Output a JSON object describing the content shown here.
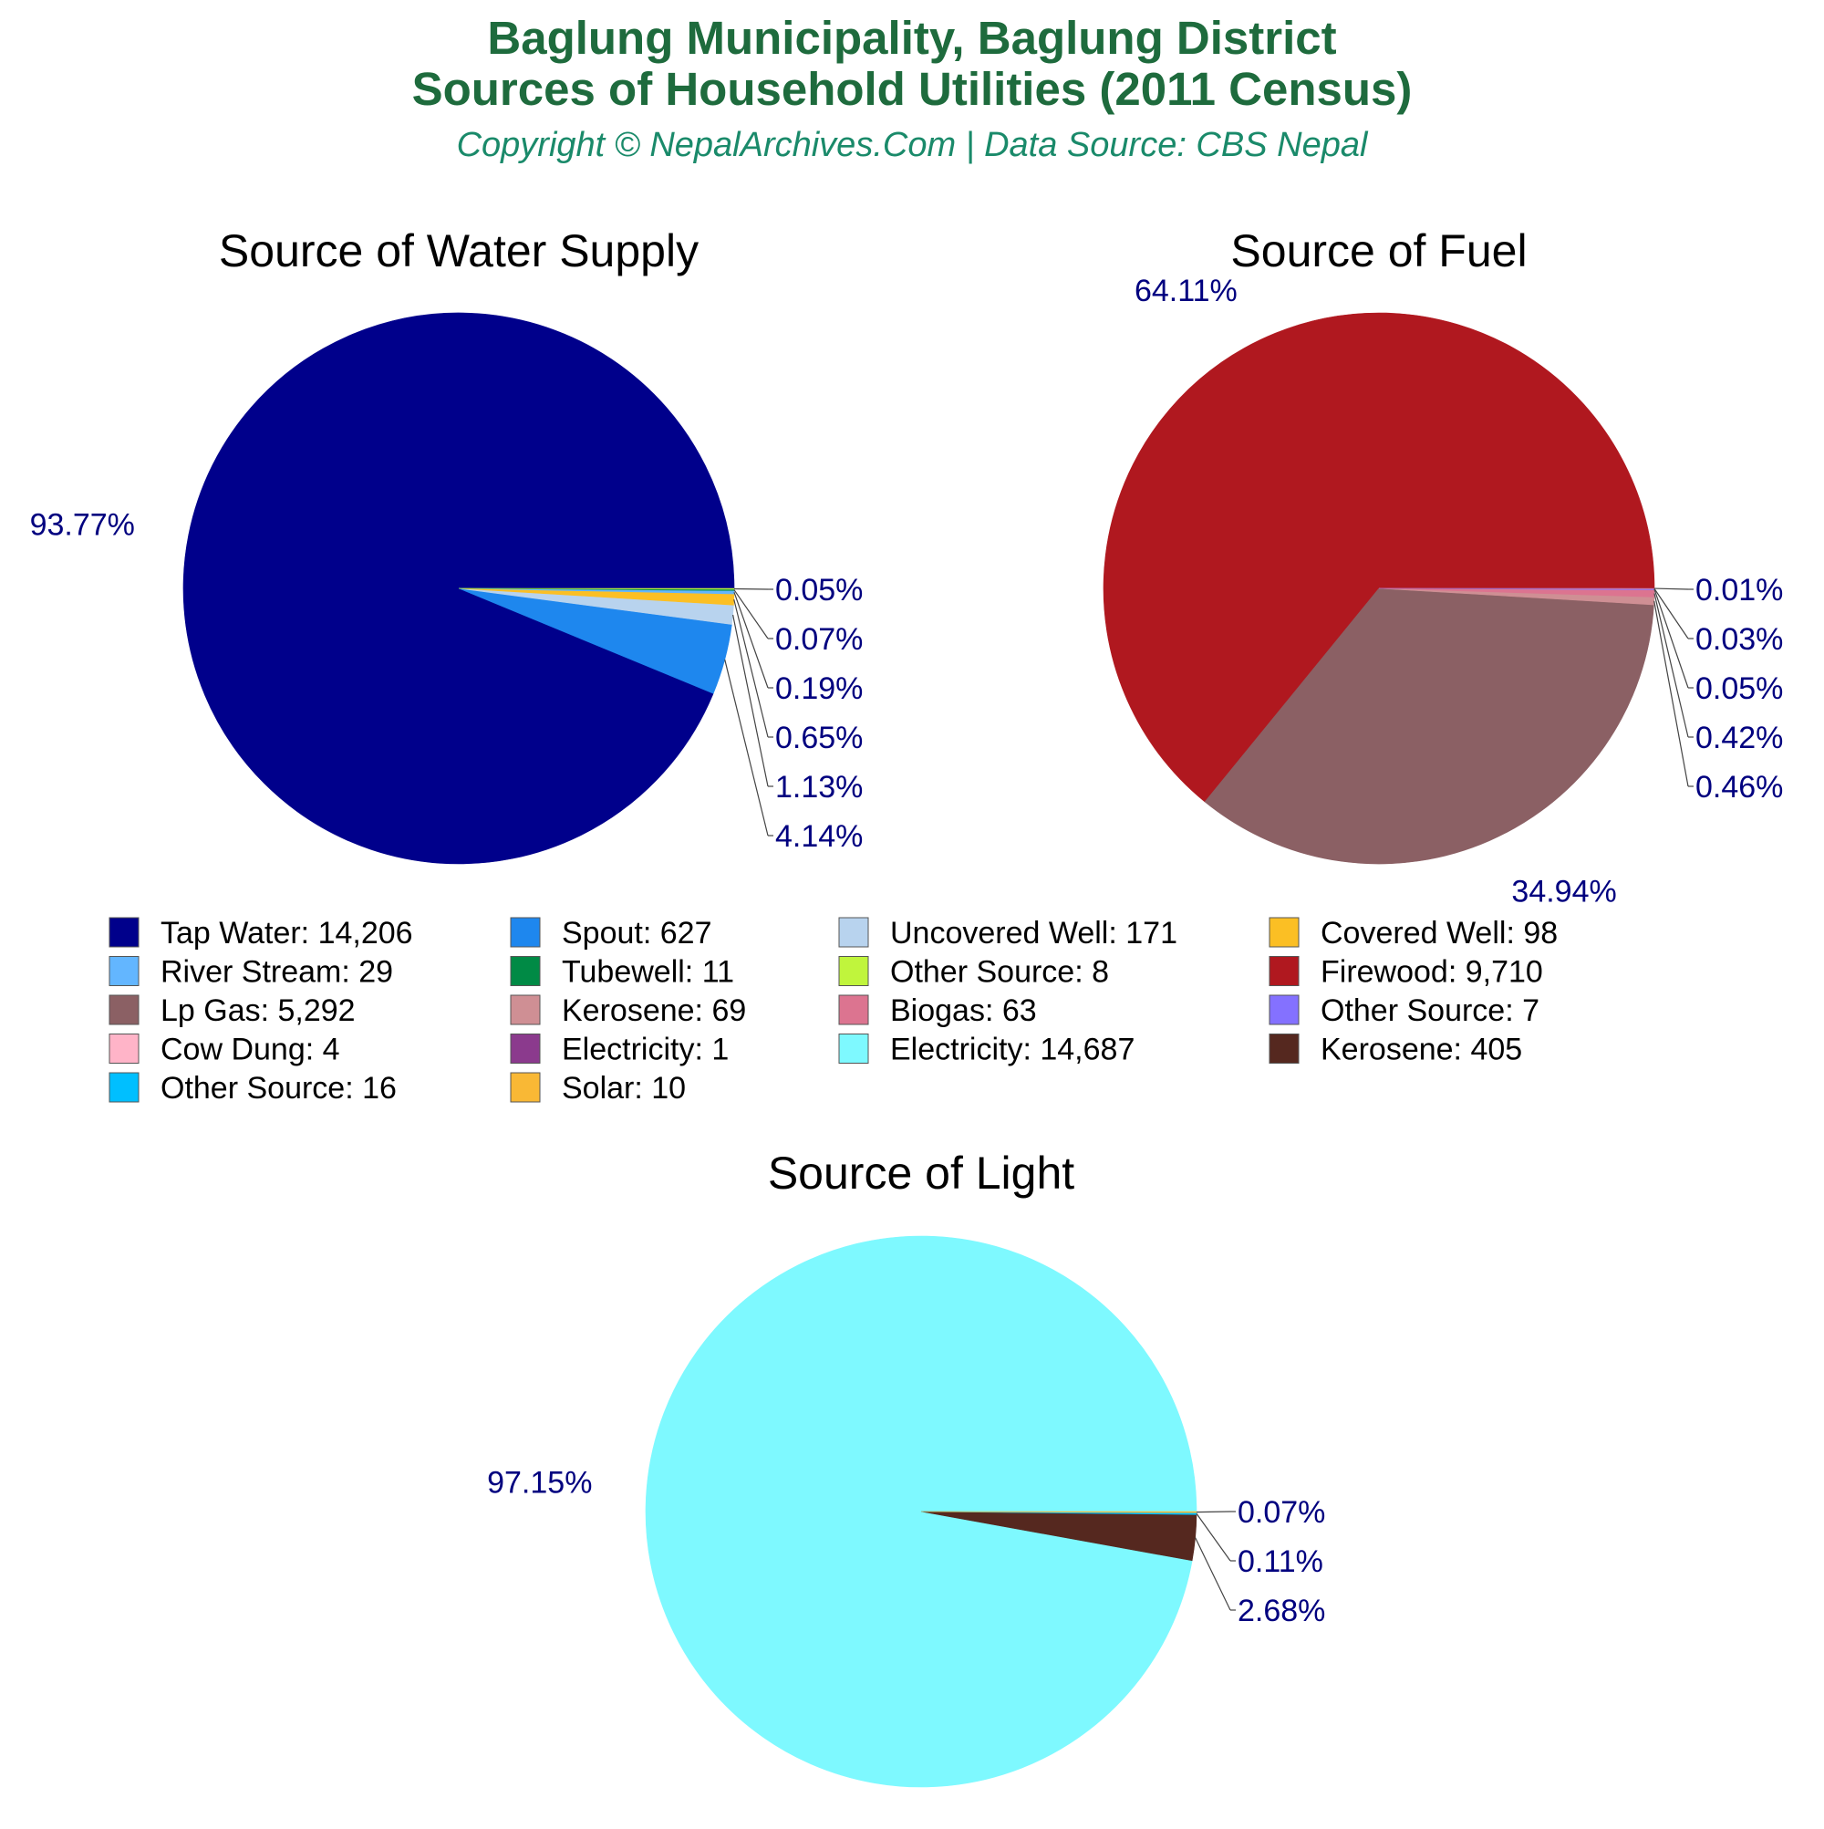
{
  "header": {
    "title_line1": "Baglung Municipality, Baglung District",
    "title_line2": "Sources of Household Utilities (2011 Census)",
    "subtitle": "Copyright © NepalArchives.Com | Data Source: CBS Nepal",
    "title_color": "#1e6b3d",
    "subtitle_color": "#1a8a6a",
    "label_color": "#00007f"
  },
  "chart_data": [
    {
      "type": "pie",
      "title": "Source of Water Supply",
      "slices": [
        {
          "label": "Tap Water",
          "value": 14206,
          "display_value": "14,206",
          "pct": "93.77%",
          "color": "#00008b"
        },
        {
          "label": "Spout",
          "value": 627,
          "display_value": "627",
          "pct": "4.14%",
          "color": "#1e87ee"
        },
        {
          "label": "Uncovered Well",
          "value": 171,
          "display_value": "171",
          "pct": "1.13%",
          "color": "#b8d3ee"
        },
        {
          "label": "Covered Well",
          "value": 98,
          "display_value": "98",
          "pct": "0.65%",
          "color": "#fbbf24"
        },
        {
          "label": "River Stream",
          "value": 29,
          "display_value": "29",
          "pct": "0.19%",
          "color": "#63b6ff"
        },
        {
          "label": "Tubewell",
          "value": 11,
          "display_value": "11",
          "pct": "0.07%",
          "color": "#008a45"
        },
        {
          "label": "Other Source",
          "value": 8,
          "display_value": "8",
          "pct": "0.05%",
          "color": "#c0f53c"
        }
      ]
    },
    {
      "type": "pie",
      "title": "Source of Fuel",
      "slices": [
        {
          "label": "Firewood",
          "value": 9710,
          "display_value": "9,710",
          "pct": "64.11%",
          "color": "#b0181f"
        },
        {
          "label": "Lp Gas",
          "value": 5292,
          "display_value": "5,292",
          "pct": "34.94%",
          "color": "#8b6064"
        },
        {
          "label": "Kerosene",
          "value": 69,
          "display_value": "69",
          "pct": "0.46%",
          "color": "#cf8f94"
        },
        {
          "label": "Biogas",
          "value": 63,
          "display_value": "63",
          "pct": "0.42%",
          "color": "#dc7490"
        },
        {
          "label": "Other Source",
          "value": 7,
          "display_value": "7",
          "pct": "0.05%",
          "color": "#8471ff"
        },
        {
          "label": "Cow Dung",
          "value": 4,
          "display_value": "4",
          "pct": "0.03%",
          "color": "#ffb4c8"
        },
        {
          "label": "Electricity",
          "value": 1,
          "display_value": "1",
          "pct": "0.01%",
          "color": "#8b3a8d"
        }
      ]
    },
    {
      "type": "pie",
      "title": "Source of Light",
      "slices": [
        {
          "label": "Electricity",
          "value": 14687,
          "display_value": "14,687",
          "pct": "97.15%",
          "color": "#7ef9ff"
        },
        {
          "label": "Kerosene",
          "value": 405,
          "display_value": "405",
          "pct": "2.68%",
          "color": "#55281f"
        },
        {
          "label": "Other Source",
          "value": 16,
          "display_value": "16",
          "pct": "0.11%",
          "color": "#00bfff"
        },
        {
          "label": "Solar",
          "value": 10,
          "display_value": "10",
          "pct": "0.07%",
          "color": "#f9b835"
        }
      ]
    }
  ]
}
